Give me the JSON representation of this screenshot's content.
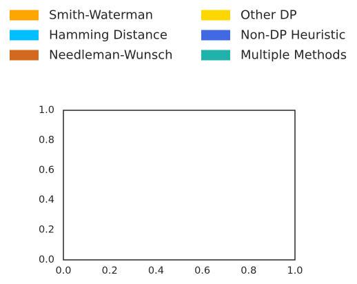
{
  "chart_data": {
    "type": "bar",
    "title": "",
    "xlabel": "",
    "ylabel": "",
    "xlim": [
      0.0,
      1.0
    ],
    "ylim": [
      0.0,
      1.0
    ],
    "x_ticks": [
      "0.0",
      "0.2",
      "0.4",
      "0.6",
      "0.8",
      "1.0"
    ],
    "y_ticks": [
      "0.0",
      "0.2",
      "0.4",
      "0.6",
      "0.8",
      "1.0"
    ],
    "grid": false,
    "legend_placement": "top",
    "legend": [
      {
        "name": "Smith-Waterman",
        "color": "#FFA500"
      },
      {
        "name": "Hamming Distance",
        "color": "#00BFFF"
      },
      {
        "name": "Needleman-Wunsch",
        "color": "#D2691E"
      },
      {
        "name": "Other DP",
        "color": "#FFD700"
      },
      {
        "name": "Non-DP Heuristic",
        "color": "#4169E1"
      },
      {
        "name": "Multiple Methods",
        "color": "#20B2AA"
      }
    ],
    "series": [],
    "axis_color": "#262626",
    "text_color": "#262626"
  }
}
